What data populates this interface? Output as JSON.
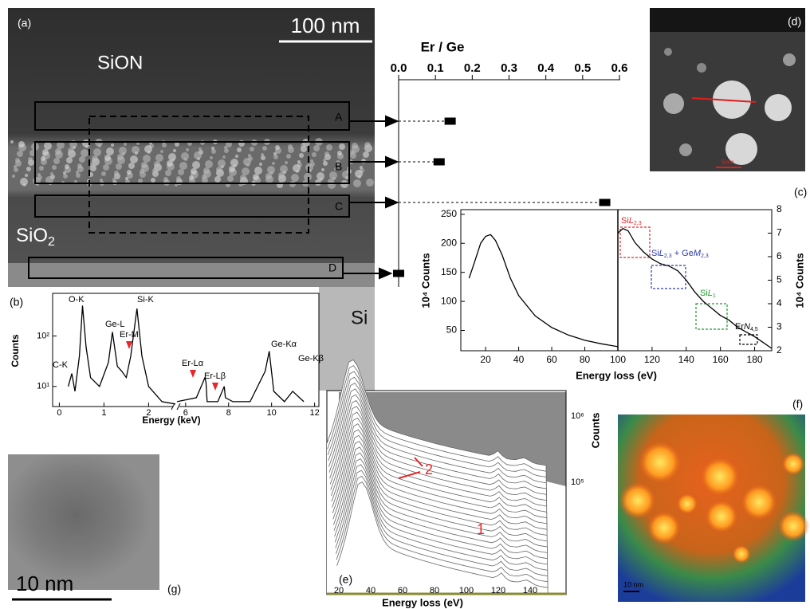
{
  "panels": {
    "a": "(a)",
    "b": "(b)",
    "c": "(c)",
    "d": "(d)",
    "e": "(e)",
    "f": "(f)",
    "g": "(g)"
  },
  "image_a": {
    "scale_bar": "100 nm",
    "sion": "SiON",
    "sio2": [
      "SiO",
      "2"
    ],
    "si": "Si"
  },
  "scale_d": "5nm",
  "scale_f": "10 nm",
  "scale_g": "10 nm",
  "panel_e": {
    "xlabel": "Energy loss (eV)",
    "xticks": [
      "20",
      "40",
      "60",
      "80",
      "100",
      "120",
      "140"
    ],
    "ylabel": "Counts",
    "yticks": [
      "10⁶",
      "10⁵"
    ],
    "markers": [
      "1",
      "2"
    ]
  },
  "chart_data": [
    {
      "type": "dot",
      "title": "Er / Ge",
      "categories": [
        "A",
        "B",
        "C",
        "D"
      ],
      "values": [
        0.14,
        0.11,
        0.56,
        0
      ],
      "color": "#000000",
      "xlim": [
        0,
        0.6
      ],
      "xticks": [
        {
          "value": 0,
          "label": "0.0"
        },
        0.1,
        0.2,
        0.3,
        0.4,
        0.5,
        0.6
      ]
    },
    {
      "type": "line",
      "x": [
        0.2,
        0.28,
        0.35,
        0.45,
        0.52,
        0.6,
        0.7,
        0.9,
        1.1,
        1.19,
        1.3,
        1.4,
        1.5,
        1.6,
        1.74,
        1.85,
        2.0,
        2.3,
        2.6,
        4,
        5.6,
        6.5,
        6.9,
        6.95,
        7.0,
        7.5,
        7.8,
        7.85,
        8.2,
        9.0,
        9.7,
        9.89,
        10.1,
        10.6,
        10.98,
        11.5
      ],
      "values": [
        10,
        18,
        8,
        40,
        400,
        60,
        15,
        10,
        30,
        120,
        25,
        20,
        15,
        40,
        350,
        40,
        10,
        5,
        4.5,
        null,
        5,
        6,
        15,
        12,
        5,
        5,
        10,
        6,
        5,
        5,
        20,
        50,
        8,
        5,
        8,
        5
      ],
      "color": "#000000",
      "xlabel": "Energy (keV)",
      "ylabel": "Counts",
      "log_y": true,
      "ylim": [
        4,
        700
      ],
      "yticks": [
        {
          "value": 10,
          "label": "10¹"
        },
        {
          "value": 100,
          "label": "10²"
        }
      ],
      "xlim": [
        -0.15,
        12.2
      ],
      "axis_break": [
        2.6,
        5.6
      ],
      "xticks": [
        0,
        1,
        2,
        6,
        8,
        10,
        12
      ],
      "annotations": [
        "C-K",
        "O-K",
        "Ge-L",
        "Er-M",
        "Si-K",
        "Er-Lα",
        "Er-Lβ",
        "Ge-Kα",
        "Ge-Kβ"
      ]
    },
    {
      "type": "line",
      "x": [
        10,
        13,
        17,
        20,
        23,
        26,
        30,
        35,
        40,
        50,
        60,
        70,
        80,
        90,
        100
      ],
      "values": [
        140,
        165,
        200,
        212,
        215,
        205,
        180,
        140,
        110,
        75,
        55,
        42,
        33,
        27,
        22
      ],
      "color": "#000000",
      "xlabel": "Energy loss (eV)",
      "ylabel": "10⁴ Counts",
      "xlim": [
        5,
        100
      ],
      "ylim": [
        15,
        258
      ],
      "xticks": [
        20,
        40,
        60,
        80,
        100
      ],
      "yticks": [
        50,
        100,
        150,
        200,
        250
      ]
    },
    {
      "type": "line",
      "x": [
        100,
        103,
        106,
        110,
        115,
        120,
        125,
        130,
        135,
        140,
        145,
        150,
        155,
        160,
        165,
        170,
        175,
        180,
        185,
        190
      ],
      "values": [
        7.0,
        7.2,
        7.1,
        6.6,
        6.2,
        5.9,
        5.7,
        5.6,
        5.4,
        5.0,
        4.5,
        4.1,
        3.8,
        3.5,
        3.3,
        3.0,
        2.8,
        2.6,
        2.35,
        2.1
      ],
      "color": "#000000",
      "ylabel": "10⁴ Counts",
      "xlim": [
        100,
        190
      ],
      "ylim": [
        2,
        8
      ],
      "xticks": [
        120,
        140,
        160,
        180
      ],
      "yticks": [
        2,
        3,
        4,
        5,
        6,
        7,
        8
      ],
      "annotations": [
        {
          "color": "#e8262a",
          "parts": [
            {
              "t": "Si"
            },
            {
              "t": "L",
              "i": true
            },
            {
              "t": "2,3",
              "sub": true
            }
          ]
        },
        {
          "color": "#2b3bb0",
          "parts": [
            {
              "t": "Si"
            },
            {
              "t": "L",
              "i": true
            },
            {
              "t": "2,3",
              "sub": true
            },
            {
              "t": " + Ge"
            },
            {
              "t": "M",
              "i": true
            },
            {
              "t": "2,3",
              "sub": true
            }
          ]
        },
        {
          "color": "#1f9a2e",
          "parts": [
            {
              "t": "Si"
            },
            {
              "t": "L",
              "i": true
            },
            {
              "t": "1",
              "sub": true
            }
          ]
        },
        {
          "color": "#000000",
          "parts": [
            {
              "t": "Er"
            },
            {
              "t": "N",
              "i": true
            },
            {
              "t": "4,5",
              "sub": true
            }
          ]
        }
      ]
    }
  ]
}
